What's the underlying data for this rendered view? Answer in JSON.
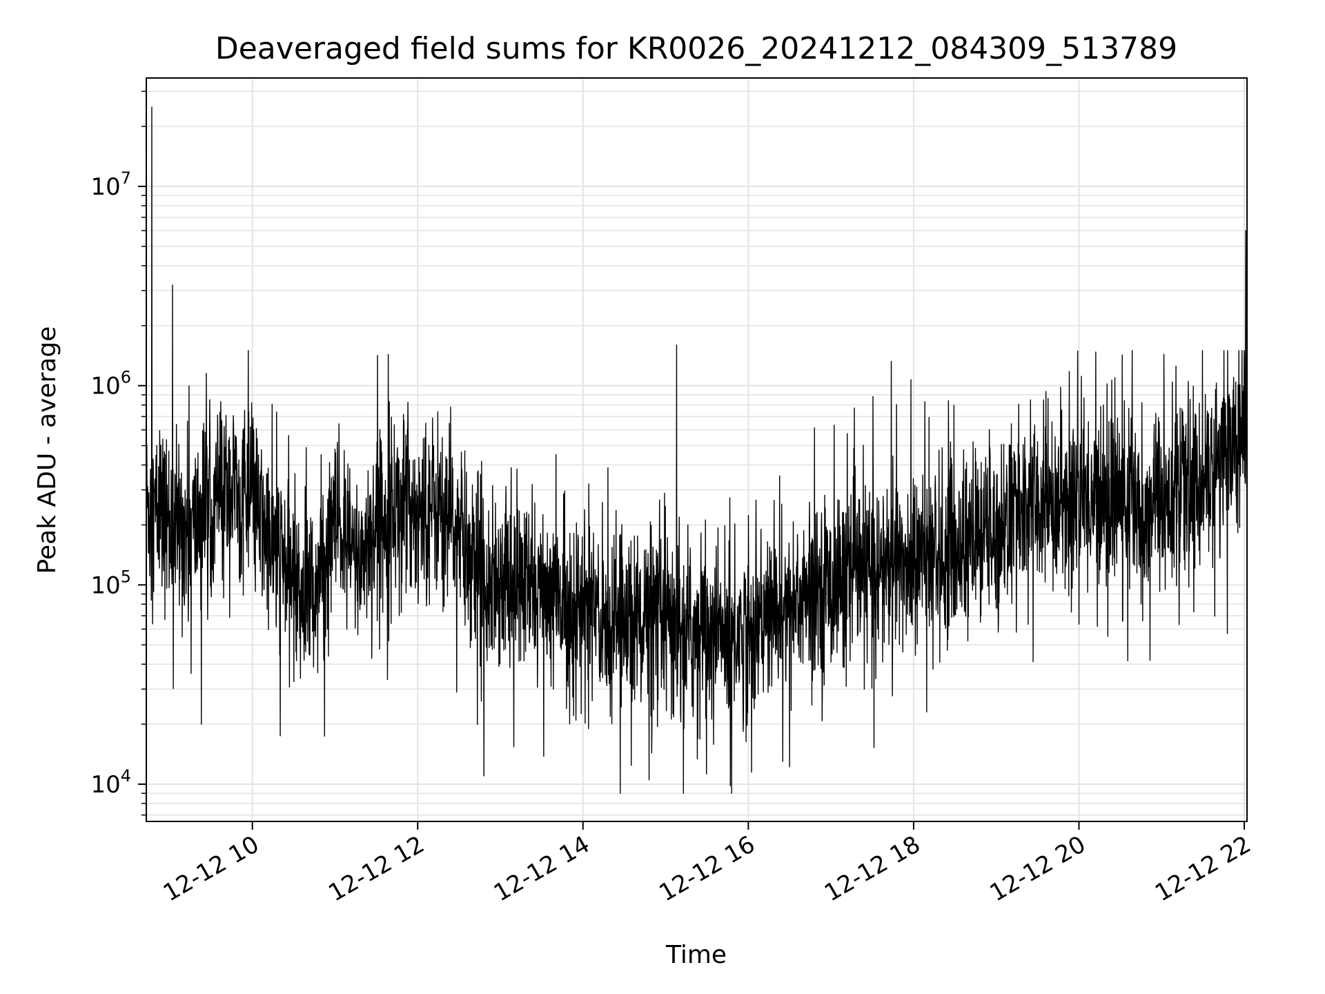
{
  "chart_data": {
    "type": "line",
    "title": "Deaveraged field sums for KR0026_20241212_084309_513789",
    "xlabel": "Time",
    "ylabel": "Peak ADU - average",
    "yscale": "log",
    "ylim": [
      6500,
      35000000
    ],
    "xlim": [
      "2024-12-12T08:43",
      "2024-12-12T22:02"
    ],
    "grid": true,
    "line_color": "#000000",
    "x_tick_labels": [
      "12-12 10",
      "12-12 12",
      "12-12 14",
      "12-12 16",
      "12-12 18",
      "12-12 20",
      "12-12 22"
    ],
    "y_tick_labels": [
      {
        "base": "10",
        "exp": "4"
      },
      {
        "base": "10",
        "exp": "5"
      },
      {
        "base": "10",
        "exp": "6"
      },
      {
        "base": "10",
        "exp": "7"
      }
    ],
    "series": [
      {
        "x": [
          "2024-12-12T08:45",
          "2024-12-12T09:00",
          "2024-12-12T09:15",
          "2024-12-12T09:30",
          "2024-12-12T09:45",
          "2024-12-12T10:00",
          "2024-12-12T10:15",
          "2024-12-12T10:30",
          "2024-12-12T10:45",
          "2024-12-12T11:00",
          "2024-12-12T11:15",
          "2024-12-12T11:30",
          "2024-12-12T11:45",
          "2024-12-12T12:00",
          "2024-12-12T12:15",
          "2024-12-12T12:30",
          "2024-12-12T12:45",
          "2024-12-12T13:00",
          "2024-12-12T13:15",
          "2024-12-12T13:30",
          "2024-12-12T13:45",
          "2024-12-12T14:00",
          "2024-12-12T14:15",
          "2024-12-12T14:30",
          "2024-12-12T14:45",
          "2024-12-12T15:00",
          "2024-12-12T15:15",
          "2024-12-12T15:30",
          "2024-12-12T15:45",
          "2024-12-12T16:00",
          "2024-12-12T16:15",
          "2024-12-12T16:30",
          "2024-12-12T16:45",
          "2024-12-12T17:00",
          "2024-12-12T17:15",
          "2024-12-12T17:30",
          "2024-12-12T17:45",
          "2024-12-12T18:00",
          "2024-12-12T18:15",
          "2024-12-12T18:30",
          "2024-12-12T18:45",
          "2024-12-12T19:00",
          "2024-12-12T19:15",
          "2024-12-12T19:30",
          "2024-12-12T19:45",
          "2024-12-12T20:00",
          "2024-12-12T20:15",
          "2024-12-12T20:30",
          "2024-12-12T20:45",
          "2024-12-12T21:00",
          "2024-12-12T21:15",
          "2024-12-12T21:30",
          "2024-12-12T21:45",
          "2024-12-12T22:00"
        ],
        "y": [
          250000,
          200000,
          180000,
          280000,
          300000,
          250000,
          150000,
          110000,
          90000,
          200000,
          130000,
          200000,
          260000,
          240000,
          250000,
          170000,
          120000,
          110000,
          100000,
          90000,
          80000,
          75000,
          70000,
          65000,
          70000,
          60000,
          55000,
          60000,
          55000,
          60000,
          70000,
          80000,
          90000,
          100000,
          110000,
          120000,
          125000,
          130000,
          140000,
          150000,
          170000,
          190000,
          230000,
          250000,
          260000,
          270000,
          280000,
          270000,
          260000,
          270000,
          280000,
          320000,
          500000,
          520000
        ]
      }
    ],
    "peaks": [
      {
        "x": "2024-12-12T08:47",
        "y": 25000000
      },
      {
        "x": "2024-12-12T09:02",
        "y": 3200000
      },
      {
        "x": "2024-12-12T15:08",
        "y": 1600000
      },
      {
        "x": "2024-12-12T22:01",
        "y": 6000000
      }
    ],
    "troughs": [
      {
        "x": "2024-12-12T12:48",
        "y": 11000
      },
      {
        "x": "2024-12-12T14:48",
        "y": 10500
      },
      {
        "x": "2024-12-12T15:47",
        "y": 9800
      },
      {
        "x": "2024-12-12T16:25",
        "y": 13000
      },
      {
        "x": "2024-12-12T09:23",
        "y": 20000
      }
    ]
  }
}
